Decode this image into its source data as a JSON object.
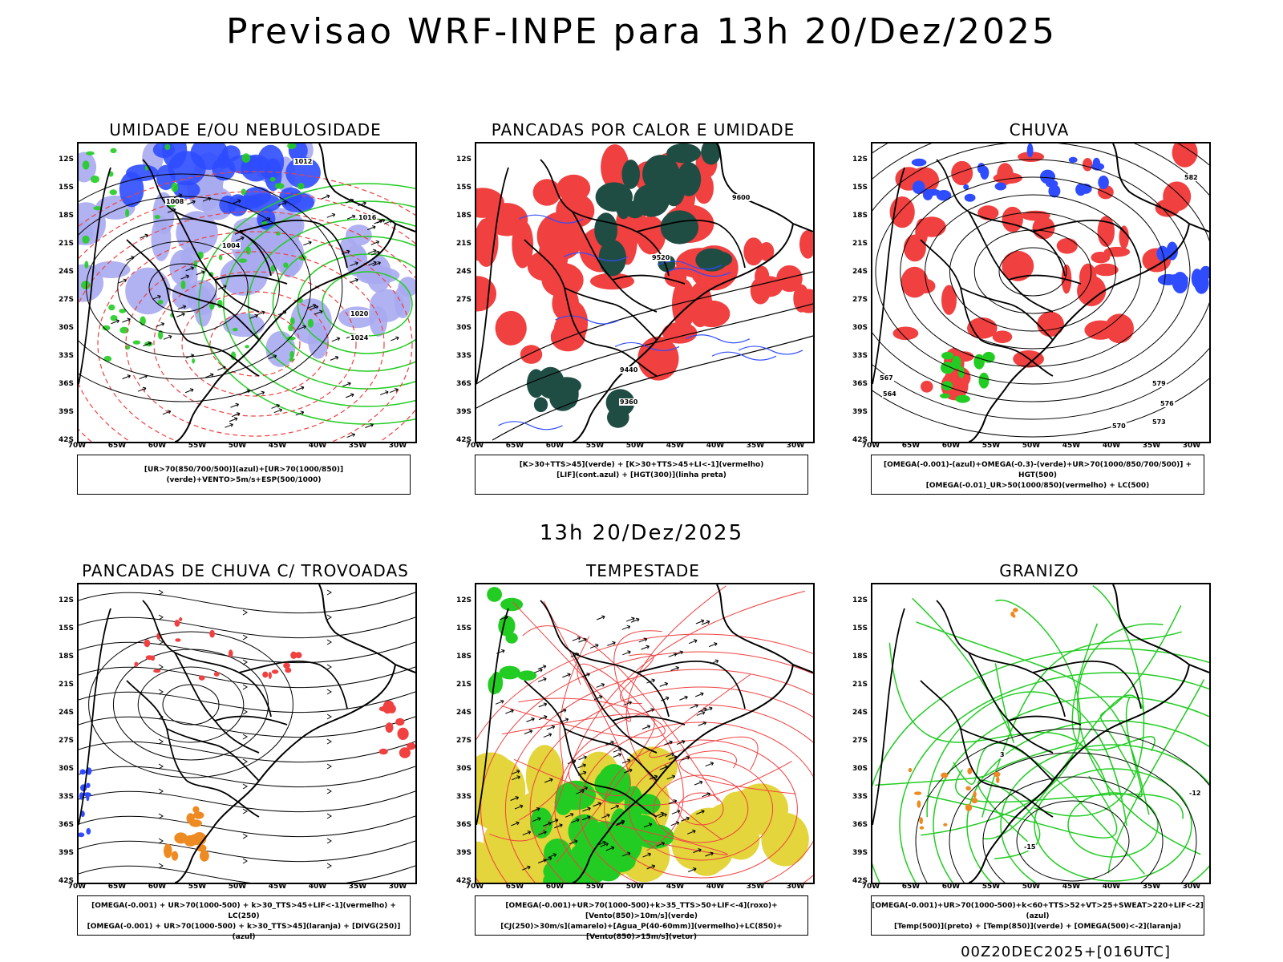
{
  "title": "Previsao WRF-INPE  para 13h 20/Dez/2025",
  "mid_title": "13h 20/Dez/2025",
  "footer": "00Z20DEC2025+[016UTC]",
  "axes": {
    "lat_ticks": [
      "12S",
      "15S",
      "18S",
      "21S",
      "24S",
      "27S",
      "30S",
      "33S",
      "36S",
      "39S",
      "42S"
    ],
    "lon_ticks": [
      "70W",
      "65W",
      "60W",
      "55W",
      "50W",
      "45W",
      "40W",
      "35W",
      "30W"
    ]
  },
  "colors": {
    "blue": "#2f4cff",
    "lavender": "#a8aaf0",
    "green": "#22cc22",
    "red": "#f04040",
    "darkgreen": "#1f4d44",
    "yellow": "#e3d53b",
    "orange": "#ee8a22"
  },
  "panels": [
    {
      "title": "UMIDADE E/OU NEBULOSIDADE",
      "legend": [
        "[UR>70(850/700/500)](azul)+[UR>70(1000/850)](verde)+VENTO>5m/s+ESP(500/1000)"
      ]
    },
    {
      "title": "PANCADAS POR CALOR E UMIDADE",
      "legend": [
        "[K>30+TTS>45](verde)  +  [K>30+TTS>45+LI<-1](vermelho)",
        "[LIF](cont.azul)  +  [HGT(300)](linha preta)"
      ]
    },
    {
      "title": "CHUVA",
      "legend": [
        "[OMEGA(-0.001)-(azul)+OMEGA(-0.3)-(verde)+UR>70(1000/850/700/500)]  +  HGT(500)",
        "[OMEGA(-0.01)_UR>50(1000/850)(vermelho)  +  LC(500)"
      ]
    },
    {
      "title": "PANCADAS DE CHUVA C/ TROVOADAS",
      "legend": [
        "[OMEGA(-0.001) + UR>70(1000-500) + k>30_TTS>45+LIF<-1](vermelho) + LC(250)",
        "[OMEGA(-0.001) + UR>70(1000-500) + k>30_TTS>45](laranja) + [DIVG(250)](azul)"
      ]
    },
    {
      "title": "TEMPESTADE",
      "legend": [
        "[OMEGA(-0.001)+UR>70(1000-500)+k>35_TTS>50+LIF<-4](roxo)+[Vento(850)>10m/s](verde)",
        "[CJ(250)>30m/s](amarelo)+[Agua_P(40-60mm)](vermelho)+LC(850)+[Vento(850)>15m/s](vetor)"
      ]
    },
    {
      "title": "GRANIZO",
      "legend": [
        "[OMEGA(-0.001)+UR>70(1000-500)+k<60+TTS>52+VT>25+SWEAT>220+LIF<-2](azul)",
        "[Temp(500)](preto) + [Temp(850)](verde) + [OMEGA(500)<-2](laranja)"
      ]
    }
  ],
  "contour_labels": {
    "p1": [
      "1012",
      "1008",
      "1004",
      "1016",
      "1020",
      "1024"
    ],
    "p2": [
      "9600",
      "9520",
      "9440",
      "9360"
    ],
    "p3": [
      "582",
      "579",
      "576",
      "573",
      "570",
      "567",
      "564"
    ],
    "p6": [
      "-12",
      "-15",
      "3"
    ]
  }
}
